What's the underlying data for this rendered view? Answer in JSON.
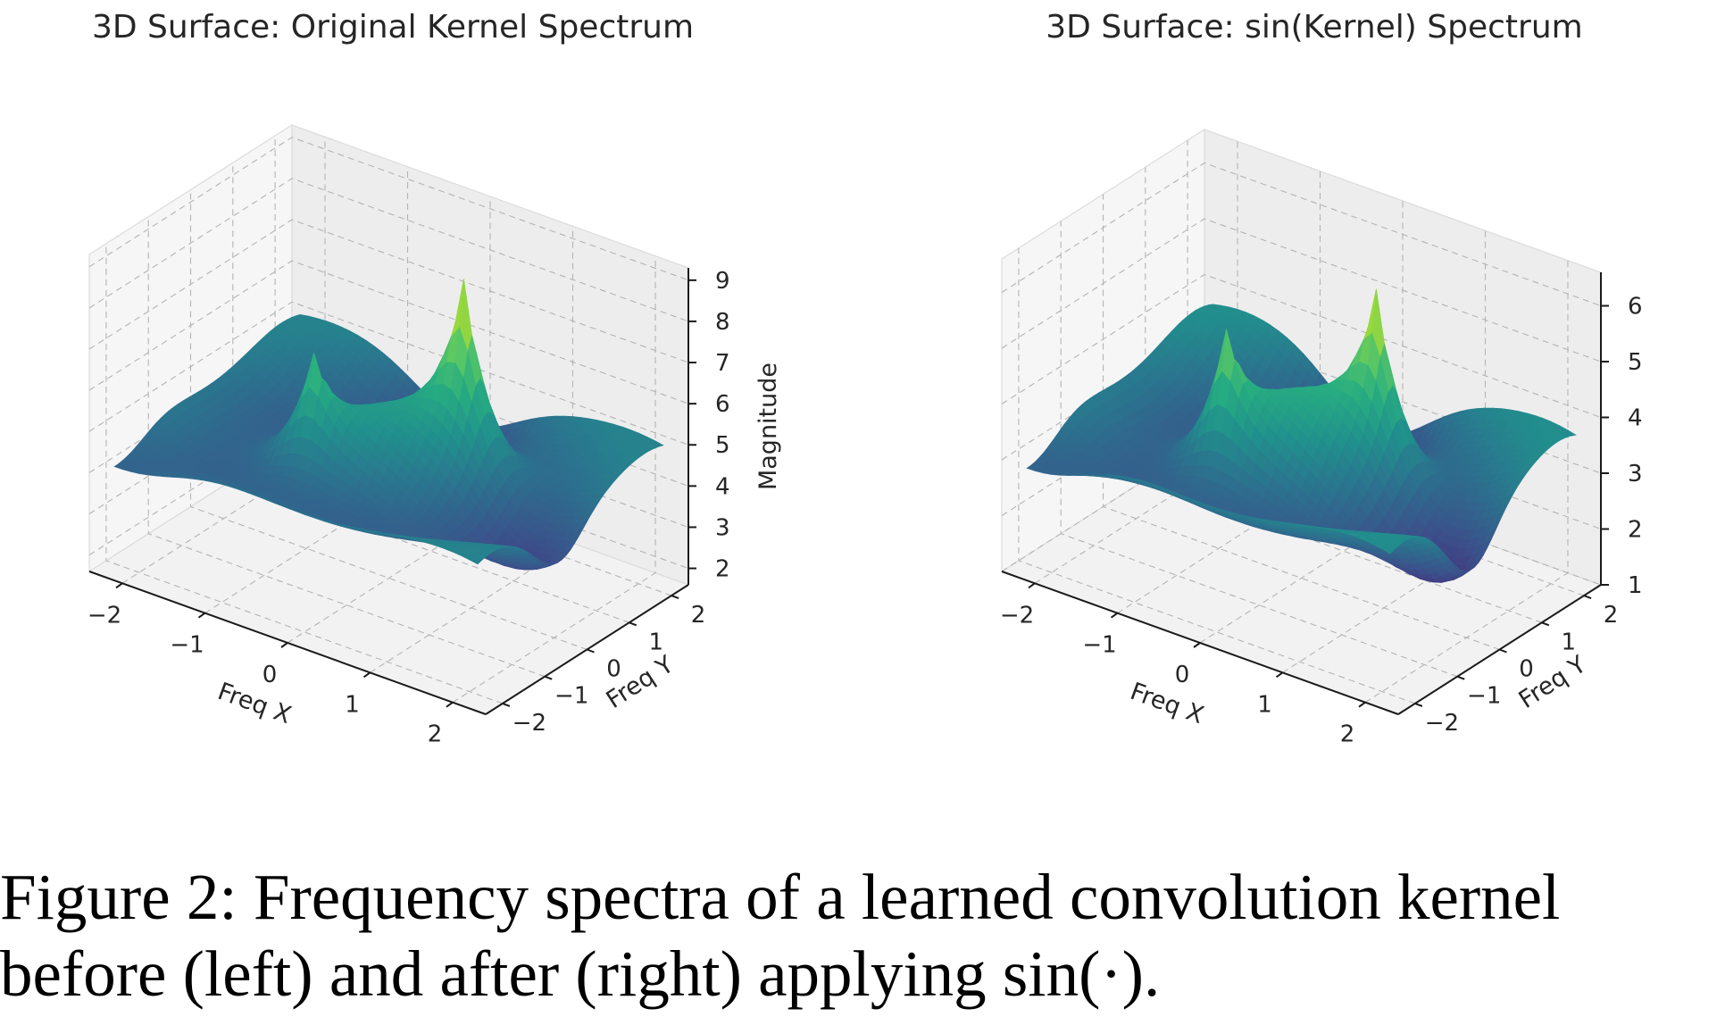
{
  "figure": {
    "caption_line1": "Figure 2: Frequency spectra of a learned convolution kernel",
    "caption_line2": "before (left) and after (right) applying sin(·)."
  },
  "chart_data": [
    {
      "type": "surface",
      "title": "3D Surface: Original Kernel Spectrum",
      "xlabel": "Freq X",
      "ylabel": "Freq Y",
      "zlabel": "Magnitude",
      "colormap": "viridis",
      "xlim": [
        -2.4,
        2.4
      ],
      "ylim": [
        -2.4,
        2.4
      ],
      "zlim": [
        1.6,
        9.3
      ],
      "x_ticks": [
        -2,
        -1,
        0,
        1,
        2
      ],
      "x_tick_labels": [
        "−2",
        "−1",
        "0",
        "1",
        "2"
      ],
      "y_ticks": [
        -2,
        -1,
        0,
        1,
        2
      ],
      "y_tick_labels": [
        "−2",
        "−1",
        "0",
        "1",
        "2"
      ],
      "z_ticks": [
        2,
        3,
        4,
        5,
        6,
        7,
        8,
        9
      ],
      "z_tick_labels": [
        "2",
        "3",
        "4",
        "5",
        "6",
        "7",
        "8",
        "9"
      ],
      "surface": {
        "x_range": [
          -2.2,
          2.2
        ],
        "y_range": [
          -2.2,
          2.2
        ],
        "base": 4.6,
        "z_min": 1.8,
        "z_max": 9.1
      },
      "peaks": [
        {
          "x": -0.6,
          "y": -0.6,
          "height": 7.2
        },
        {
          "x": 0.6,
          "y": 0.6,
          "height": 9.1
        }
      ]
    },
    {
      "type": "surface",
      "title": "3D Surface: sin(Kernel) Spectrum",
      "xlabel": "Freq X",
      "ylabel": "Freq Y",
      "zlabel": "",
      "colormap": "viridis",
      "xlim": [
        -2.4,
        2.4
      ],
      "ylim": [
        -2.4,
        2.4
      ],
      "zlim": [
        1.0,
        6.6
      ],
      "x_ticks": [
        -2,
        -1,
        0,
        1,
        2
      ],
      "x_tick_labels": [
        "−2",
        "−1",
        "0",
        "1",
        "2"
      ],
      "y_ticks": [
        -2,
        -1,
        0,
        1,
        2
      ],
      "y_tick_labels": [
        "−2",
        "−1",
        "0",
        "1",
        "2"
      ],
      "z_ticks": [
        1,
        2,
        3,
        4,
        5,
        6
      ],
      "z_tick_labels": [
        "1",
        "2",
        "3",
        "4",
        "5",
        "6"
      ],
      "surface": {
        "x_range": [
          -2.2,
          2.2
        ],
        "y_range": [
          -2.2,
          2.2
        ],
        "base": 3.3,
        "z_min": 1.2,
        "z_max": 6.4
      },
      "peaks": [
        {
          "x": -0.6,
          "y": -0.6,
          "height": 5.6
        },
        {
          "x": 0.6,
          "y": 0.6,
          "height": 6.4
        }
      ]
    }
  ]
}
